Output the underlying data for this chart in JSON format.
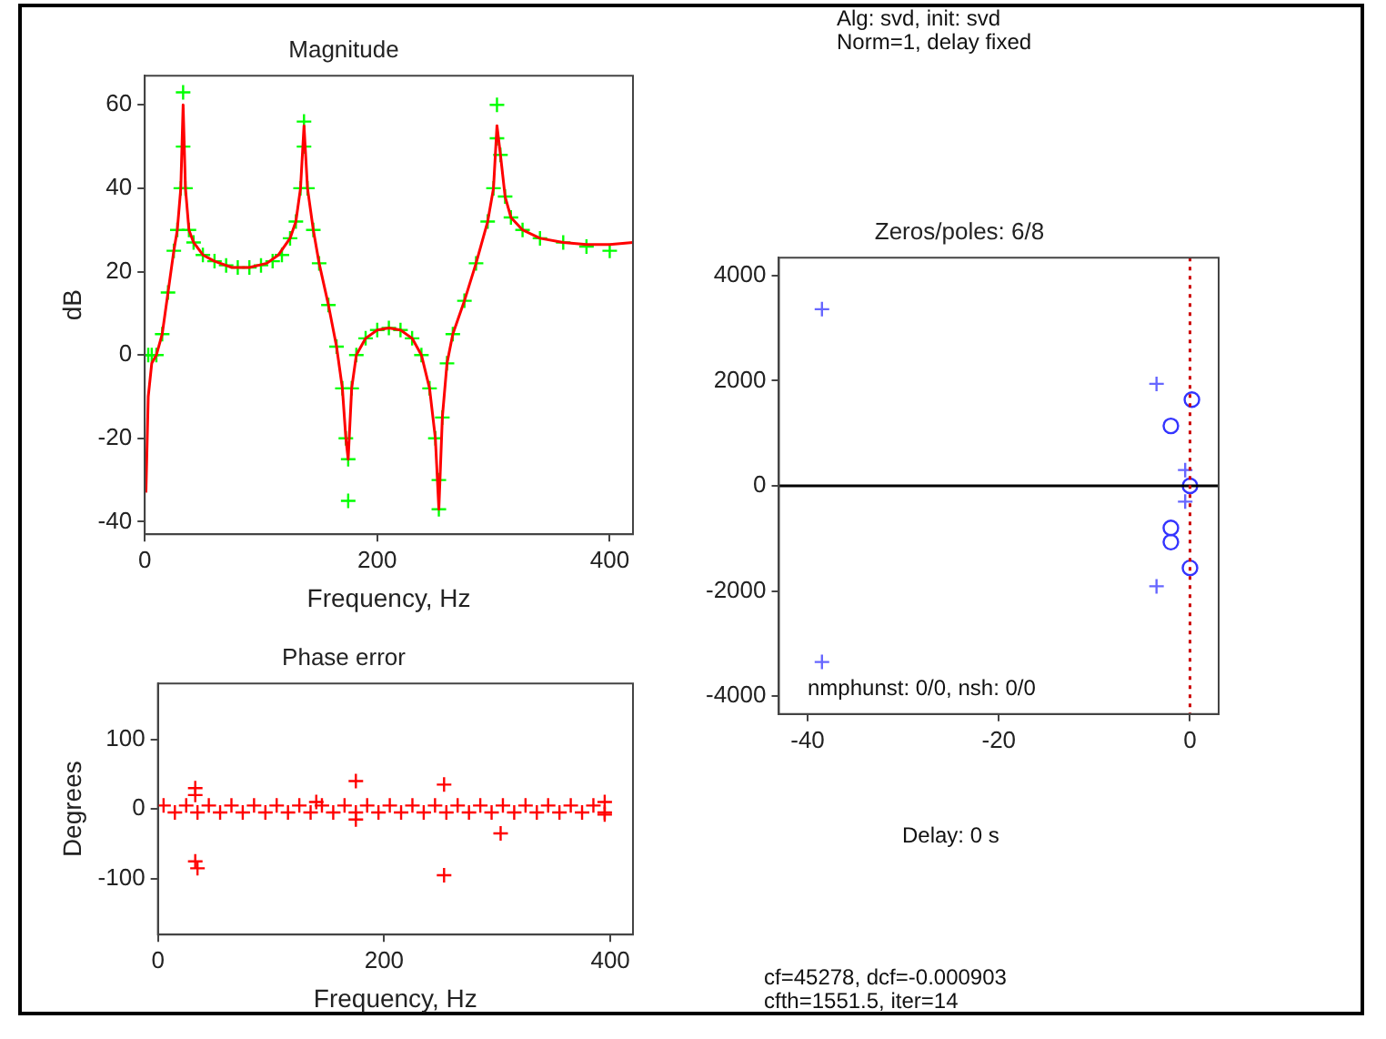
{
  "chart_data": [
    {
      "type": "line",
      "title": "Magnitude",
      "xlabel": "Frequency, Hz",
      "ylabel": "dB",
      "xlim": [
        0,
        420
      ],
      "ylim": [
        -43,
        67
      ],
      "xticks": [
        0,
        200,
        400
      ],
      "yticks": [
        -40,
        -20,
        0,
        20,
        40,
        60
      ],
      "grid": false,
      "legend": false,
      "series": [
        {
          "type": "line",
          "color": "#ff0000",
          "marker": "none",
          "x": [
            1,
            3,
            6,
            10,
            15,
            20,
            25,
            28,
            31,
            33,
            35,
            38,
            42,
            50,
            60,
            75,
            90,
            105,
            115,
            125,
            130,
            134,
            137,
            140,
            145,
            150,
            158,
            165,
            170,
            173,
            175,
            178,
            182,
            190,
            200,
            210,
            220,
            230,
            238,
            245,
            250,
            253,
            256,
            260,
            265,
            275,
            285,
            295,
            300,
            303,
            306,
            310,
            315,
            325,
            340,
            360,
            380,
            400,
            420
          ],
          "values": [
            -33,
            -10,
            -2,
            0,
            5,
            15,
            25,
            30,
            40,
            60,
            40,
            30,
            27,
            24,
            22.5,
            21,
            21,
            22,
            24,
            28,
            32,
            40,
            55,
            40,
            30,
            22,
            12,
            2,
            -8,
            -20,
            -25,
            -8,
            0,
            4,
            6,
            6.5,
            6,
            4,
            0,
            -8,
            -20,
            -37,
            -15,
            -2,
            5,
            13,
            22,
            32,
            40,
            55,
            48,
            38,
            33,
            30,
            28,
            27,
            26.5,
            26.5,
            27
          ]
        },
        {
          "type": "scatter",
          "color": "#00ff00",
          "marker": "cross",
          "x": [
            3,
            6,
            10,
            15,
            20,
            25,
            28,
            31,
            33,
            33,
            35,
            38,
            42,
            50,
            60,
            70,
            80,
            90,
            100,
            110,
            118,
            125,
            130,
            134,
            137,
            137,
            140,
            145,
            150,
            158,
            165,
            170,
            173,
            175,
            175,
            178,
            182,
            190,
            200,
            210,
            220,
            230,
            238,
            245,
            250,
            253,
            253,
            256,
            260,
            265,
            275,
            285,
            295,
            300,
            303,
            303,
            306,
            310,
            315,
            325,
            340,
            360,
            380,
            400
          ],
          "values": [
            0,
            0,
            0,
            5,
            15,
            25,
            30,
            40,
            63,
            50,
            40,
            30,
            27,
            24,
            22.5,
            21.5,
            21,
            21,
            21.5,
            22.5,
            24,
            28,
            32,
            40,
            56,
            50,
            40,
            30,
            22,
            12,
            2,
            -8,
            -20,
            -25,
            -35,
            -8,
            0,
            4,
            6,
            6.5,
            6,
            4,
            0,
            -8,
            -20,
            -37,
            -30,
            -15,
            -2,
            5,
            13,
            22,
            32,
            40,
            60,
            52,
            48,
            38,
            33,
            30,
            28,
            27,
            26,
            25
          ]
        }
      ]
    },
    {
      "type": "scatter",
      "title": "Phase error",
      "xlabel": "Frequency, Hz",
      "ylabel": "Degrees",
      "xlim": [
        0,
        420
      ],
      "ylim": [
        -180,
        180
      ],
      "xticks": [
        0,
        200,
        400
      ],
      "yticks": [
        -100,
        0,
        100
      ],
      "grid": false,
      "legend": false,
      "series": [
        {
          "color": "#ff0000",
          "marker": "cross",
          "x": [
            5,
            15,
            25,
            35,
            45,
            55,
            65,
            75,
            85,
            95,
            105,
            115,
            125,
            135,
            145,
            155,
            165,
            175,
            185,
            195,
            205,
            215,
            225,
            235,
            245,
            255,
            265,
            275,
            285,
            295,
            305,
            315,
            325,
            335,
            345,
            355,
            365,
            375,
            385,
            395,
            33,
            33,
            33,
            35,
            175,
            175,
            253,
            253,
            303,
            140,
            395,
            395
          ],
          "values": [
            5,
            -5,
            5,
            -5,
            5,
            -5,
            5,
            -5,
            5,
            -5,
            5,
            -5,
            5,
            -5,
            5,
            -5,
            5,
            -5,
            5,
            -5,
            5,
            -5,
            5,
            -5,
            5,
            -5,
            5,
            -5,
            5,
            -5,
            5,
            -5,
            5,
            -5,
            5,
            -5,
            5,
            -5,
            5,
            -5,
            30,
            20,
            -75,
            -85,
            40,
            -15,
            35,
            -95,
            -35,
            10,
            10,
            -8
          ]
        }
      ]
    },
    {
      "type": "scatter",
      "title": "Zeros/poles: 6/8",
      "xlim": [
        -43,
        3
      ],
      "ylim": [
        -4340,
        4340
      ],
      "xticks": [
        -40,
        -20,
        0
      ],
      "yticks": [
        -4000,
        -2000,
        0,
        2000,
        4000
      ],
      "grid": false,
      "legend": false,
      "ref_lines": [
        {
          "axis": "y",
          "value": 0,
          "color": "#000000"
        },
        {
          "axis": "x",
          "value": 0,
          "color": "#cc0000",
          "line_style": "dotted"
        }
      ],
      "series": [
        {
          "color": "#6666ff",
          "marker": "cross",
          "x": [
            -38.5,
            -38.5,
            -3.5,
            -3.5,
            -0.5,
            -0.5
          ],
          "values": [
            3360,
            -3350,
            1940,
            -1910,
            300,
            -300
          ]
        },
        {
          "color": "#3333ff",
          "marker": "circle",
          "x": [
            -2,
            -2,
            0.2,
            0,
            0,
            -2
          ],
          "values": [
            1140,
            -1070,
            1640,
            -1560,
            0,
            -800
          ]
        }
      ],
      "annotations": [
        "Alg: svd, init: svd",
        "Norm=1, delay fixed",
        "nmphunst: 0/0, nsh: 0/0",
        "Delay: 0 s",
        "cf=45278, dcf=-0.000903",
        "cfth=1551.5,   iter=14"
      ]
    }
  ]
}
